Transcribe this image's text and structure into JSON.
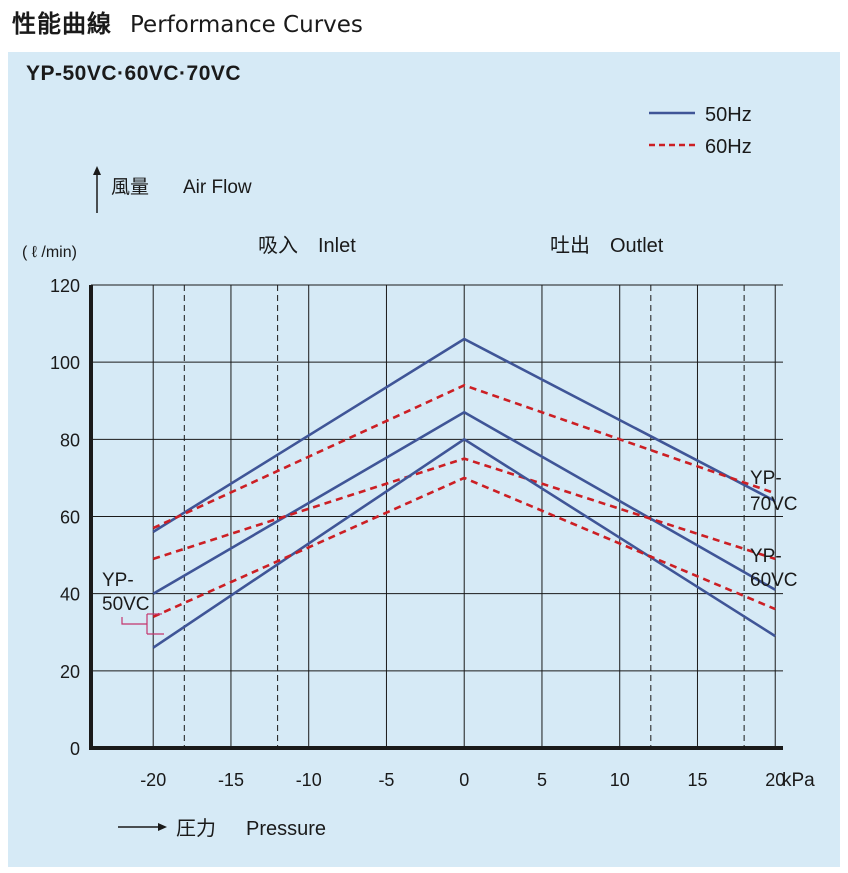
{
  "header": {
    "title_jp": "性能曲線",
    "title_en": "Performance Curves"
  },
  "model_title": "YP-50VC·60VC·70VC",
  "colors": {
    "panel_bg": "#d6eaf6",
    "hz50": "#3f5597",
    "hz60": "#cc1f24",
    "grid": "#1a1a1a",
    "callout": "#c4356e"
  },
  "chart_data": {
    "type": "line",
    "legend": {
      "position": "top-right",
      "hz50_label": "50Hz",
      "hz60_label": "60Hz"
    },
    "ylabel_jp": "風量",
    "ylabel_en": "Air Flow",
    "yunit": "( ℓ /min)",
    "xlabel_jp": "圧力",
    "xlabel_en": "Pressure",
    "xunit": "kPa",
    "region_inlet": "吸入　Inlet",
    "region_outlet": "吐出　Outlet",
    "xlim": [
      -24,
      20.5
    ],
    "ylim": [
      0,
      120
    ],
    "xticks": [
      -20,
      -15,
      -10,
      -5,
      0,
      5,
      10,
      15,
      20
    ],
    "xtick_labels": [
      "-20",
      "-15",
      "-10",
      "-5",
      "0",
      "5",
      "10",
      "15",
      "20"
    ],
    "yticks": [
      0,
      20,
      40,
      60,
      80,
      100,
      120
    ],
    "ytick_labels": [
      "0",
      "20",
      "40",
      "60",
      "80",
      "100",
      "120"
    ],
    "dashed_vlines": [
      -18,
      -12,
      12,
      18
    ],
    "series": [
      {
        "name": "YP-70VC 50Hz",
        "freq": "50Hz",
        "x": [
          -20,
          0,
          20
        ],
        "values": [
          56,
          106,
          64
        ]
      },
      {
        "name": "YP-70VC 60Hz",
        "freq": "60Hz",
        "x": [
          -20,
          0,
          20
        ],
        "values": [
          57,
          94,
          66
        ]
      },
      {
        "name": "YP-60VC 50Hz",
        "freq": "50Hz",
        "x": [
          -20,
          0,
          20
        ],
        "values": [
          40,
          87,
          41
        ]
      },
      {
        "name": "YP-60VC 60Hz",
        "freq": "60Hz",
        "x": [
          -20,
          0,
          20
        ],
        "values": [
          49,
          75,
          49
        ]
      },
      {
        "name": "YP-50VC 50Hz",
        "freq": "50Hz",
        "x": [
          -20,
          0,
          20
        ],
        "values": [
          26,
          80,
          29
        ]
      },
      {
        "name": "YP-50VC 60Hz",
        "freq": "60Hz",
        "x": [
          -20,
          0,
          20
        ],
        "values": [
          34,
          70,
          36
        ]
      }
    ],
    "annotations": [
      {
        "id": "ann70",
        "line1": "YP-",
        "line2": "70VC"
      },
      {
        "id": "ann60",
        "line1": "YP-",
        "line2": "60VC"
      },
      {
        "id": "ann50",
        "line1": "YP-",
        "line2": "50VC"
      }
    ]
  }
}
